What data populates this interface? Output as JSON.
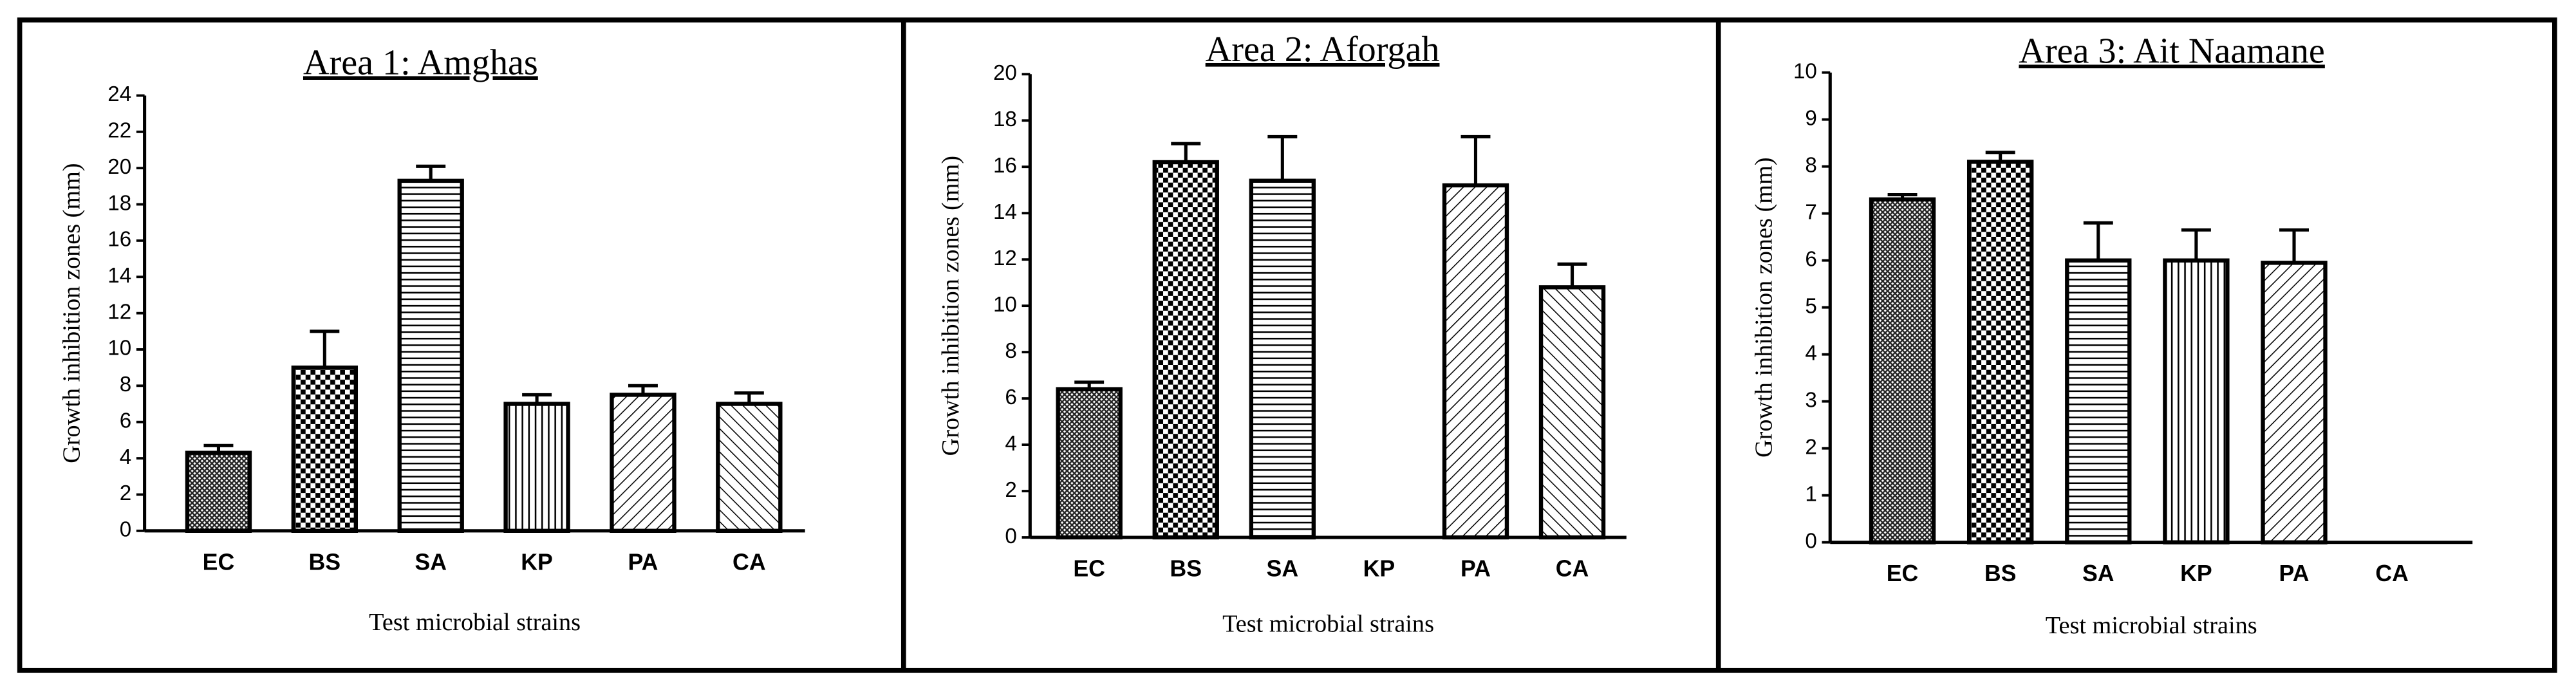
{
  "chart_data": [
    {
      "type": "bar",
      "title": "Area 1: Amghas",
      "x_label": "Test microbial strains",
      "y_label": "Growth inhibition zones (mm)",
      "categories": [
        "EC",
        "BS",
        "SA",
        "KP",
        "PA",
        "CA"
      ],
      "values": [
        4.3,
        9,
        19.3,
        7,
        7.5,
        7
      ],
      "errors": [
        0.4,
        2,
        0.8,
        0.5,
        0.5,
        0.6
      ],
      "patterns": [
        "crosshatch",
        "checker",
        "horizontal",
        "vertical",
        "diagonal-up",
        "diagonal-down"
      ],
      "ylim": [
        0,
        24
      ],
      "yticks": [
        0,
        2,
        4,
        6,
        8,
        10,
        12,
        14,
        16,
        18,
        20,
        22,
        24
      ],
      "color": "#000000"
    },
    {
      "type": "bar",
      "title": "Area 2: Aforgah",
      "x_label": "Test microbial strains",
      "y_label": "Growth inhibition zones (mm)",
      "categories": [
        "EC",
        "BS",
        "SA",
        "KP",
        "PA",
        "CA"
      ],
      "values": [
        6.4,
        16.2,
        15.4,
        null,
        15.2,
        10.8
      ],
      "errors": [
        0.3,
        0.8,
        1.9,
        null,
        2.1,
        1.0
      ],
      "patterns": [
        "crosshatch",
        "checker",
        "horizontal",
        "vertical",
        "diagonal-up",
        "diagonal-down"
      ],
      "ylim": [
        0,
        20
      ],
      "yticks": [
        0,
        2,
        4,
        6,
        8,
        10,
        12,
        14,
        16,
        18,
        20
      ],
      "color": "#000000"
    },
    {
      "type": "bar",
      "title": "Area 3: Ait Naamane",
      "x_label": "Test microbial strains",
      "y_label": "Growth inhibition zones (mm)",
      "categories": [
        "EC",
        "BS",
        "SA",
        "KP",
        "PA",
        "CA"
      ],
      "values": [
        7.3,
        8.1,
        6.0,
        6.0,
        5.95,
        null
      ],
      "errors": [
        0.1,
        0.2,
        0.8,
        0.65,
        0.7,
        null
      ],
      "patterns": [
        "crosshatch",
        "checker",
        "horizontal",
        "vertical",
        "diagonal-up",
        "diagonal-down"
      ],
      "ylim": [
        0,
        10
      ],
      "yticks": [
        0,
        1,
        2,
        3,
        4,
        5,
        6,
        7,
        8,
        9,
        10
      ],
      "color": "#000000"
    }
  ]
}
